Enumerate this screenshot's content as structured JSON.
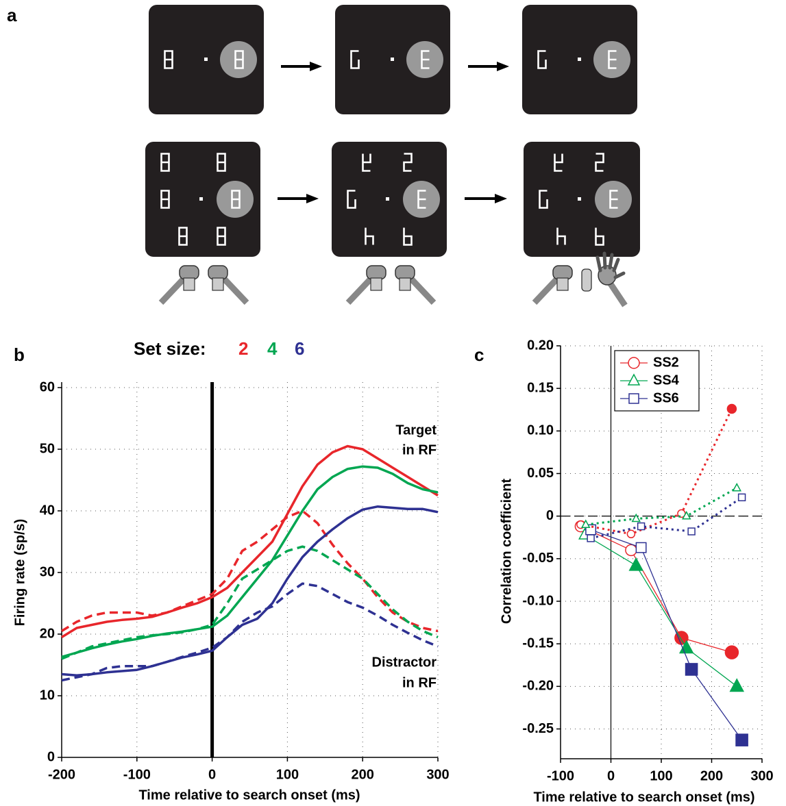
{
  "panel_a_label": "a",
  "chart_data": [
    {
      "type": "line",
      "panel_label": "b",
      "title": "Set size:",
      "x_label": "Time relative to search onset (ms)",
      "y_label": "Firing rate (sp/s)",
      "annotations": [
        "Target",
        "in RF",
        "Distractor",
        "in RF"
      ],
      "x": [
        -200,
        -180,
        -160,
        -140,
        -120,
        -100,
        -80,
        -60,
        -40,
        -20,
        0,
        20,
        40,
        60,
        80,
        100,
        120,
        140,
        160,
        180,
        200,
        220,
        240,
        260,
        280,
        300
      ],
      "series": [
        {
          "name": "2",
          "color": "#e8262b",
          "line_style": "solid",
          "values": [
            19.5,
            21,
            21.5,
            22,
            22.3,
            22.5,
            22.8,
            23.5,
            24.3,
            25,
            26,
            27.5,
            30,
            32.5,
            35,
            39.5,
            44,
            47.5,
            49.5,
            50.5,
            50,
            48.5,
            47,
            45.5,
            44,
            42.5
          ]
        },
        {
          "color": "#e8262b",
          "line_style": "dashed",
          "values": [
            20.5,
            22,
            23,
            23.5,
            23.5,
            23.5,
            23,
            23.5,
            24.5,
            25.5,
            26.5,
            29,
            33.5,
            35,
            37,
            39,
            40,
            38,
            34.5,
            31.5,
            29,
            26,
            23.5,
            22,
            21,
            20.5
          ]
        },
        {
          "name": "4",
          "color": "#00a651",
          "line_style": "solid",
          "values": [
            16.3,
            17,
            17.7,
            18.3,
            18.8,
            19.2,
            19.7,
            20.1,
            20.4,
            20.8,
            21.2,
            23,
            26,
            29,
            32,
            36,
            40,
            43.5,
            45.5,
            46.8,
            47.2,
            47,
            46,
            44.5,
            43.5,
            43
          ]
        },
        {
          "color": "#00a651",
          "line_style": "dashed",
          "values": [
            16,
            17,
            18,
            18.5,
            19,
            19.5,
            19.8,
            20,
            20.3,
            20.8,
            21.5,
            25,
            29,
            30.5,
            32,
            33.5,
            34.2,
            33.5,
            32,
            30.5,
            29,
            26.5,
            24,
            22,
            20.5,
            19.5
          ]
        },
        {
          "name": "6",
          "color": "#2e3192",
          "line_style": "solid",
          "values": [
            13.5,
            13.3,
            13.5,
            13.8,
            14,
            14.2,
            14.8,
            15.5,
            16.2,
            16.7,
            17.3,
            19.5,
            21.5,
            22.5,
            25,
            29,
            32.5,
            35,
            37,
            38.8,
            40.2,
            40.7,
            40.5,
            40.3,
            40.3,
            39.8
          ]
        },
        {
          "color": "#2e3192",
          "line_style": "dashed",
          "values": [
            12.5,
            13,
            13.5,
            14.5,
            14.8,
            14.8,
            14.8,
            15.5,
            16.3,
            17,
            17.8,
            19.5,
            22,
            23.5,
            24.5,
            26.5,
            28.2,
            27.8,
            26.5,
            25.2,
            24.3,
            23,
            21.5,
            20.2,
            19,
            18
          ]
        }
      ],
      "xlim": [
        -200,
        300
      ],
      "xticks": [
        -200,
        -100,
        0,
        100,
        200,
        300
      ],
      "ylim": [
        0,
        60
      ],
      "yticks": [
        0,
        10,
        20,
        30,
        40,
        50,
        60
      ],
      "grid": true,
      "vline": 0
    },
    {
      "type": "line",
      "panel_label": "c",
      "x_label": "Time relative to search onset (ms)",
      "y_label": "Correlation coefficient",
      "series": [
        {
          "name": "SS2",
          "color": "#e8262b",
          "line_style": "solid",
          "marker": "circle",
          "x": [
            -60,
            40,
            140,
            240
          ],
          "values": [
            -0.012,
            -0.04,
            -0.143,
            -0.16
          ],
          "marker_filled": [
            false,
            false,
            true,
            true
          ]
        },
        {
          "name": "SS4",
          "color": "#00a651",
          "line_style": "solid",
          "marker": "triangle",
          "x": [
            -52,
            50,
            150,
            250
          ],
          "values": [
            -0.022,
            -0.058,
            -0.155,
            -0.2
          ],
          "marker_filled": [
            false,
            true,
            true,
            true
          ]
        },
        {
          "name": "SS6",
          "color": "#2e3192",
          "line_style": "solid",
          "marker": "square",
          "x": [
            -40,
            60,
            160,
            260
          ],
          "values": [
            -0.016,
            -0.037,
            -0.18,
            -0.263
          ],
          "marker_filled": [
            false,
            false,
            true,
            true
          ]
        },
        {
          "color": "#e8262b",
          "line_style": "dotted",
          "marker": "circle",
          "x": [
            -60,
            40,
            140,
            240
          ],
          "values": [
            -0.01,
            -0.021,
            0.003,
            0.126
          ],
          "marker_filled": [
            false,
            false,
            false,
            true
          ]
        },
        {
          "color": "#00a651",
          "line_style": "dotted",
          "marker": "triangle",
          "x": [
            -50,
            50,
            150,
            250
          ],
          "values": [
            -0.01,
            -0.003,
            0.0,
            0.033
          ],
          "marker_filled": [
            false,
            false,
            false,
            false
          ]
        },
        {
          "color": "#2e3192",
          "line_style": "dotted",
          "marker": "square",
          "x": [
            -40,
            60,
            160,
            260
          ],
          "values": [
            -0.026,
            -0.012,
            -0.018,
            0.022
          ],
          "marker_filled": [
            false,
            false,
            false,
            false
          ]
        }
      ],
      "xlim": [
        -100,
        300
      ],
      "xticks": [
        -100,
        0,
        100,
        200,
        300
      ],
      "ylim": [
        -0.285,
        0.2
      ],
      "yticks": [
        {
          "value": 0.2,
          "label": "0.20"
        },
        0.15,
        {
          "value": 0.1,
          "label": "0.10"
        },
        0.05,
        0,
        -0.05,
        {
          "value": -0.1,
          "label": "-0.10"
        },
        -0.15,
        {
          "value": -0.2,
          "label": "-0.20"
        },
        -0.25
      ],
      "grid": true,
      "vline": 0,
      "hline": 0,
      "legend": "upper-left"
    }
  ]
}
